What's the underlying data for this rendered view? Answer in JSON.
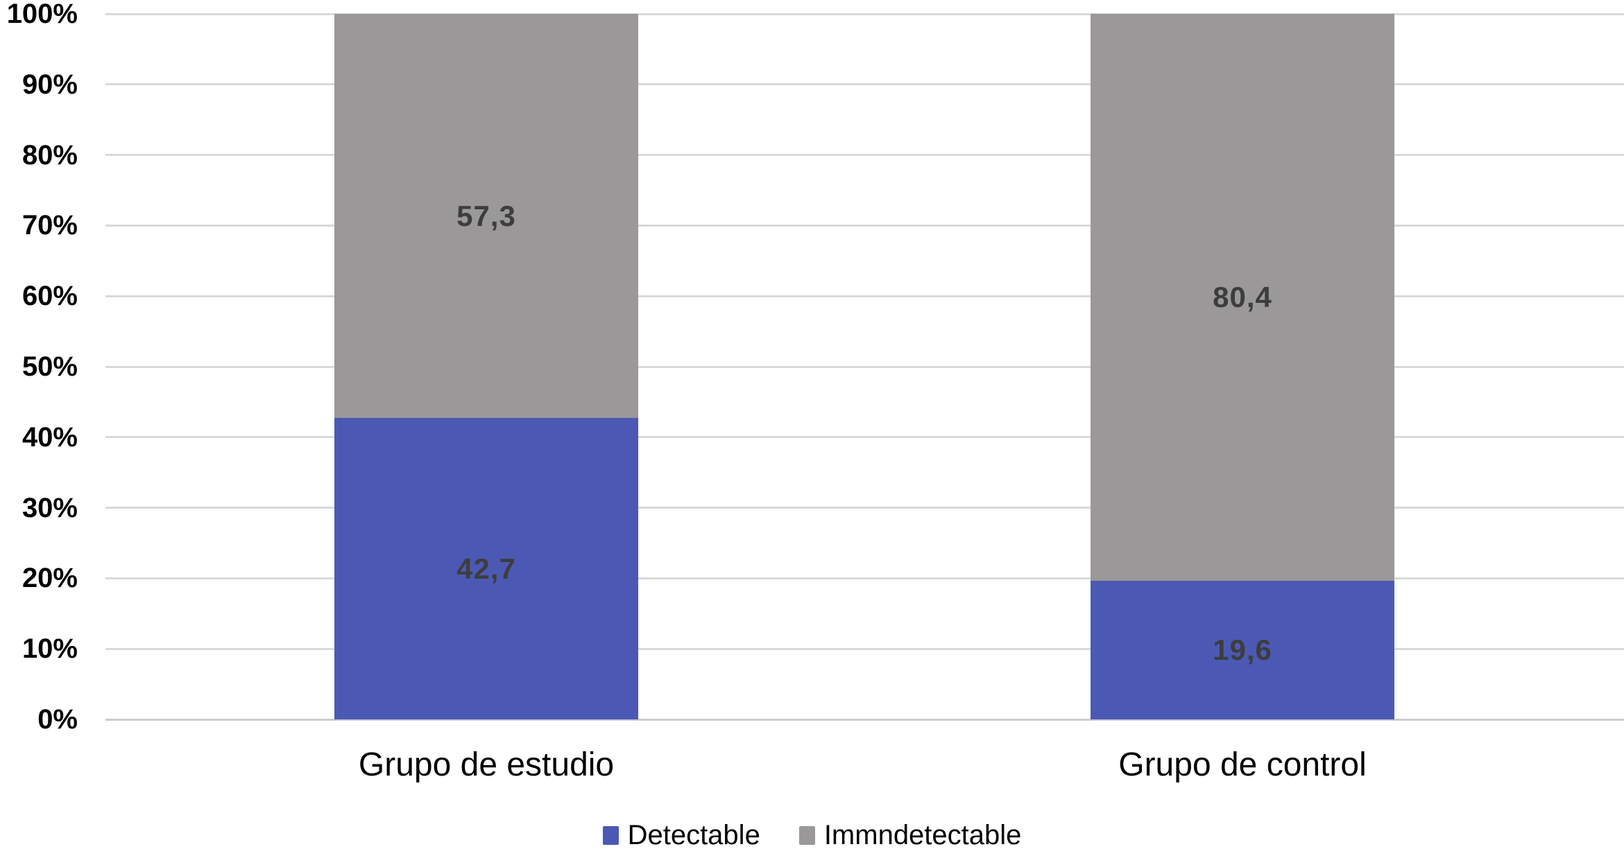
{
  "chart_data": {
    "type": "bar",
    "stacked": true,
    "orientation": "vertical",
    "title": "",
    "xlabel": "",
    "ylabel": "",
    "categories": [
      "Grupo de estudio",
      "Grupo de control"
    ],
    "series": [
      {
        "name": "Detectable",
        "color": "#4c59b4",
        "values": [
          42.7,
          19.6
        ],
        "labels": [
          "42,7",
          "19,6"
        ]
      },
      {
        "name": "Immndetectable",
        "color": "#9a9898",
        "values": [
          57.3,
          80.4
        ],
        "labels": [
          "57,3",
          "80,4"
        ]
      }
    ],
    "y_ticks": [
      "100%",
      "90%",
      "80%",
      "70%",
      "60%",
      "50%",
      "40%",
      "30%",
      "20%",
      "10%",
      "0%"
    ],
    "ylim": [
      0,
      100
    ],
    "grid": true,
    "gridline_color": "#d9d9d9",
    "baseline_color": "#cccccc",
    "data_label_color": "#3d3d3d",
    "legend_position": "bottom",
    "background_color": "#ffffff"
  }
}
